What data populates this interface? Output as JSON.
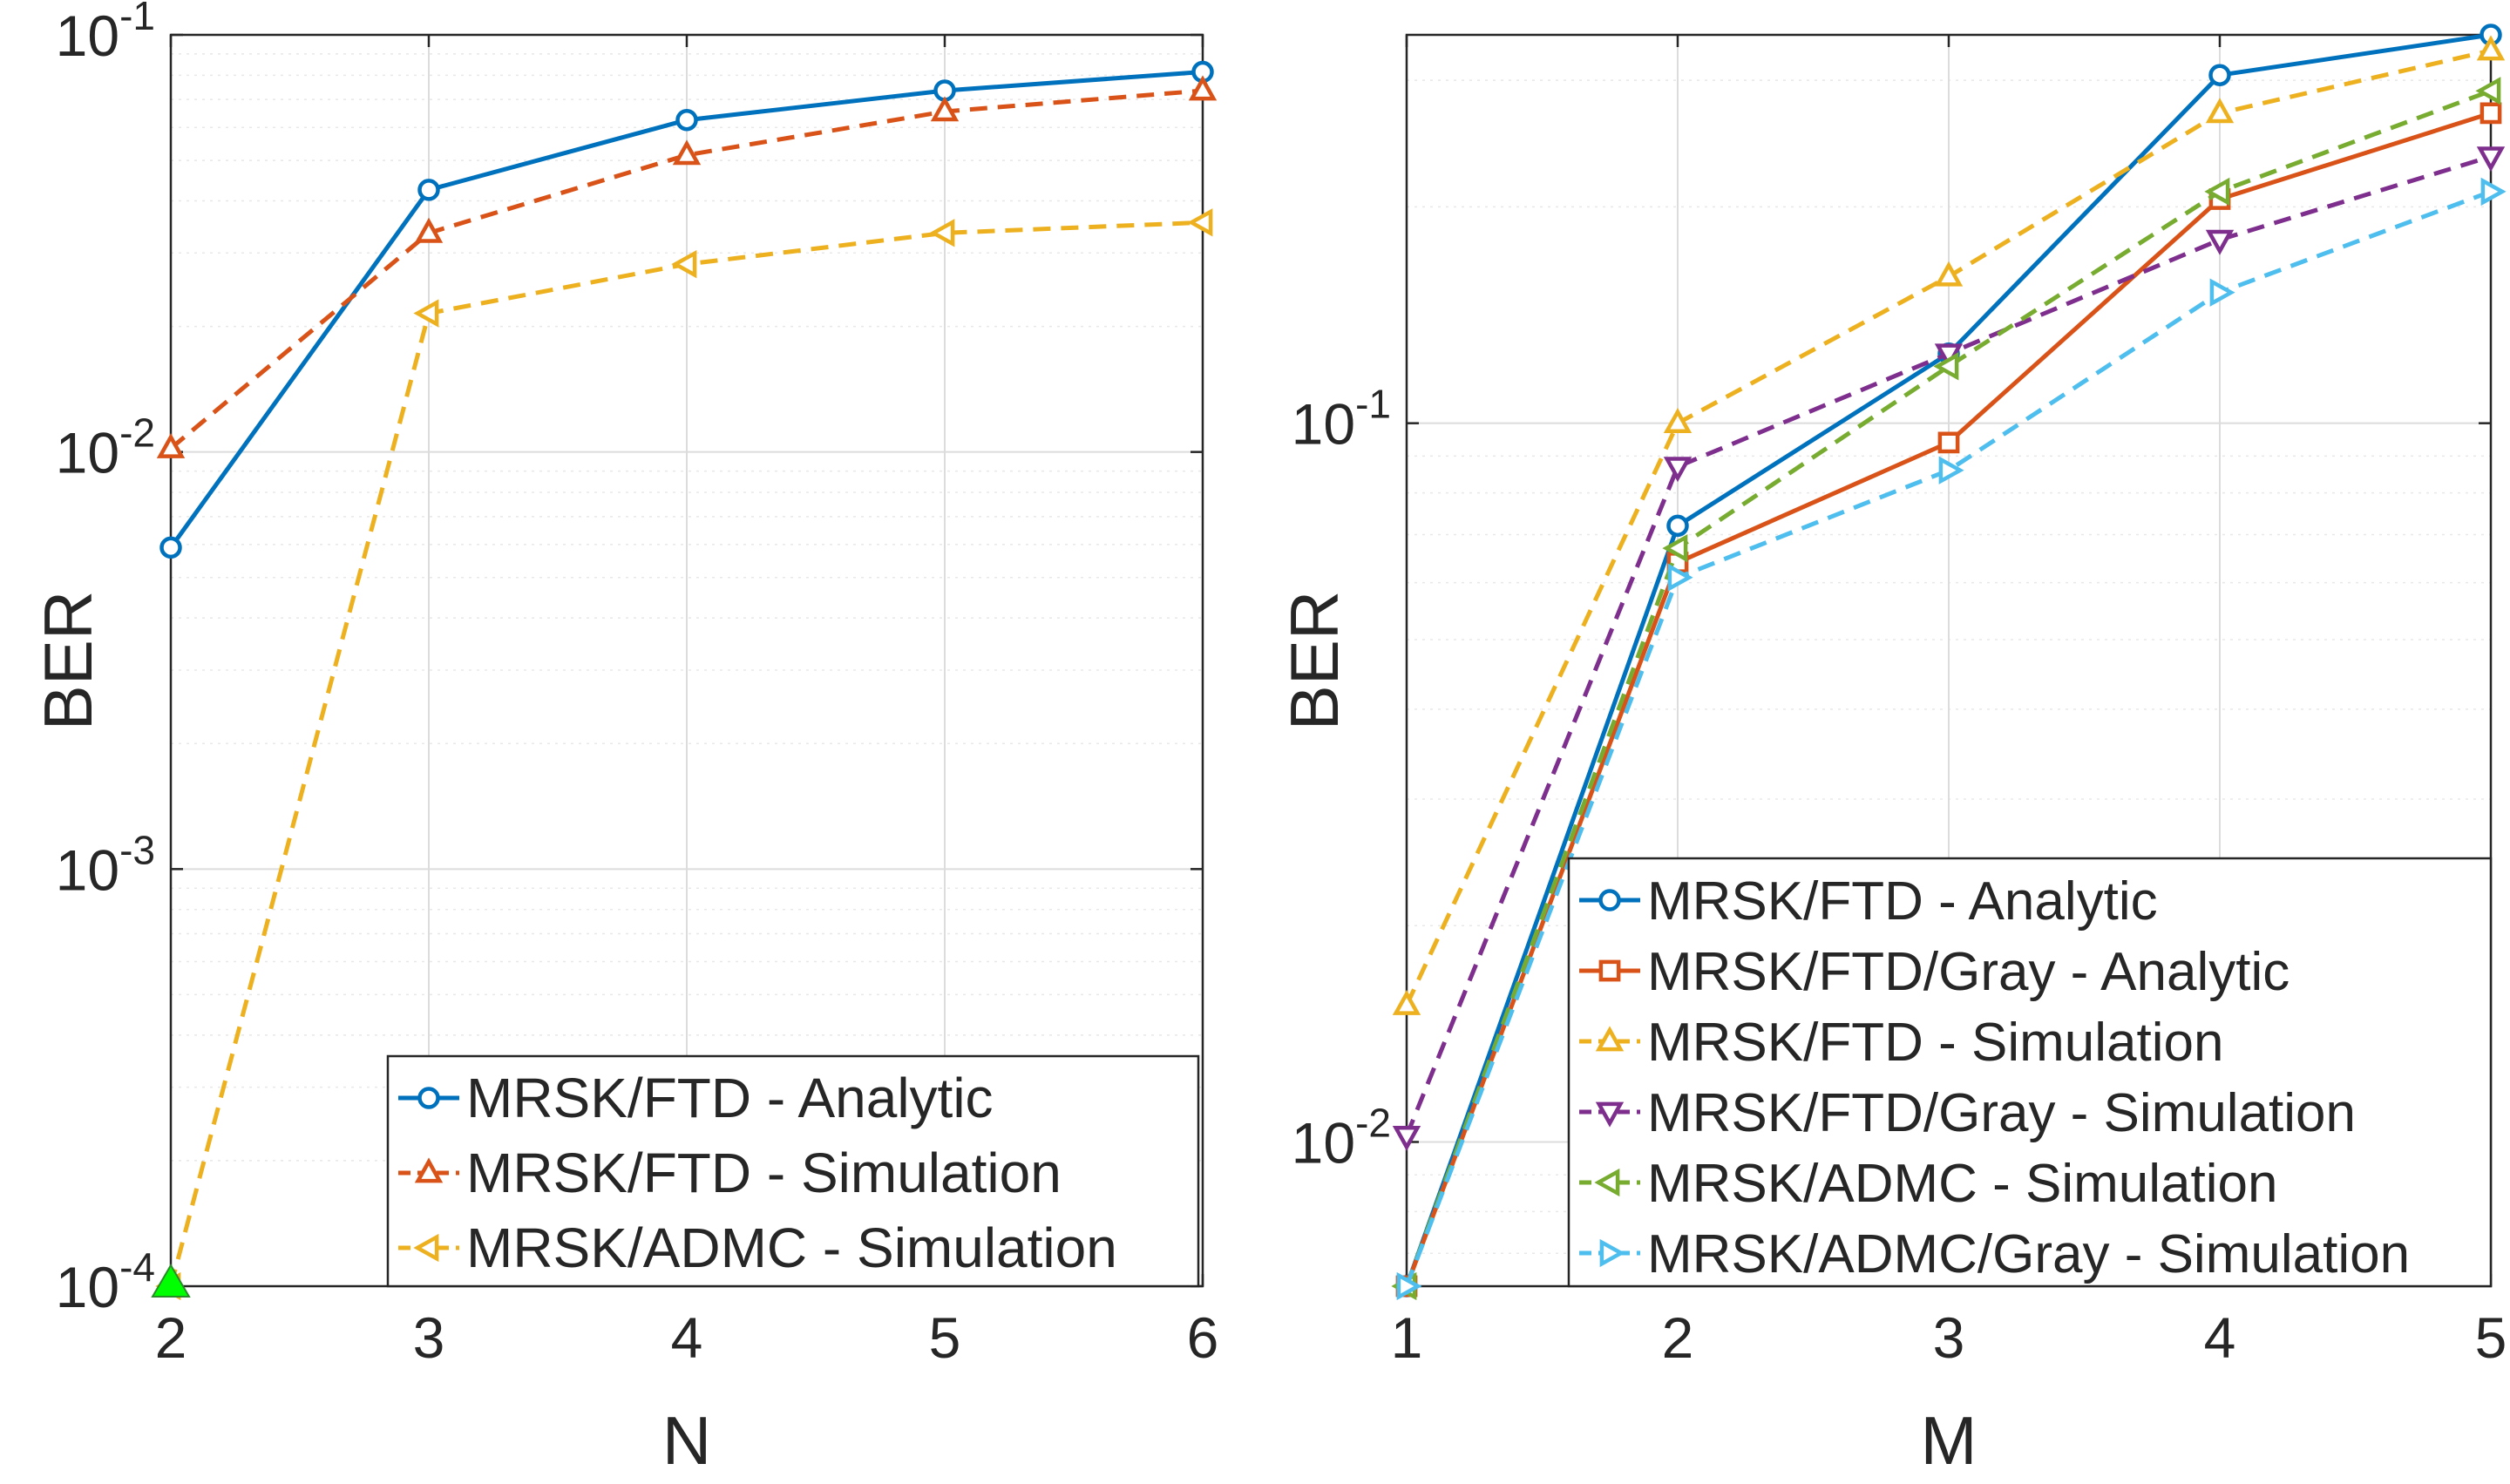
{
  "chart_data": [
    {
      "type": "line",
      "yscale": "log",
      "xlabel": "N",
      "ylabel": "BER",
      "xlim": [
        2,
        6
      ],
      "ylim": [
        0.0001,
        0.1
      ],
      "x_ticks": [
        "2",
        "3",
        "4",
        "5",
        "6"
      ],
      "y_ticks": [
        {
          "value": 0.0001,
          "base": "10",
          "exp": "-4"
        },
        {
          "value": 0.001,
          "base": "10",
          "exp": "-3"
        },
        {
          "value": 0.01,
          "base": "10",
          "exp": "-2"
        },
        {
          "value": 0.1,
          "base": "10",
          "exp": "-1"
        }
      ],
      "grid": true,
      "legend_position": "bottom-right",
      "series": [
        {
          "name": "MRSK/FTD - Analytic",
          "color": "#0072BD",
          "dash": "solid",
          "marker": "circle",
          "x": [
            2,
            3,
            4,
            5,
            6
          ],
          "values": [
            0.0059,
            0.0425,
            0.0625,
            0.0735,
            0.0815
          ]
        },
        {
          "name": "MRSK/FTD - Simulation",
          "color": "#D95319",
          "dash": "dashed",
          "marker": "triangle-up",
          "x": [
            2,
            3,
            4,
            5,
            6
          ],
          "values": [
            0.0102,
            0.0335,
            0.0515,
            0.0655,
            0.0735
          ]
        },
        {
          "name": "MRSK/ADMC - Simulation",
          "color": "#EDB120",
          "dash": "dashed",
          "marker": "triangle-left",
          "x": [
            2,
            3,
            4,
            5,
            6
          ],
          "values": [
            0.0001,
            0.0215,
            0.0282,
            0.0335,
            0.0355
          ]
        }
      ],
      "annotations": [
        {
          "type": "point",
          "x": 2,
          "y": 0.0001,
          "marker": "triangle-up",
          "color": "#00FF00"
        }
      ]
    },
    {
      "type": "line",
      "yscale": "log",
      "xlabel": "M",
      "ylabel": "BER",
      "xlim": [
        1,
        5
      ],
      "ylim": [
        0.0063,
        0.347
      ],
      "x_ticks": [
        "1",
        "2",
        "3",
        "4",
        "5"
      ],
      "y_ticks": [
        {
          "value": 0.01,
          "base": "10",
          "exp": "-2"
        },
        {
          "value": 0.1,
          "base": "10",
          "exp": "-1"
        }
      ],
      "grid": true,
      "legend_position": "bottom-right",
      "series": [
        {
          "name": "MRSK/FTD - Analytic",
          "color": "#0072BD",
          "dash": "solid",
          "marker": "circle",
          "x": [
            1,
            2,
            3,
            4,
            5
          ],
          "values": [
            0.0063,
            0.072,
            0.125,
            0.305,
            0.347
          ]
        },
        {
          "name": "MRSK/FTD/Gray - Analytic",
          "color": "#D95319",
          "dash": "solid",
          "marker": "square",
          "x": [
            1,
            2,
            3,
            4,
            5
          ],
          "values": [
            0.0063,
            0.064,
            0.094,
            0.205,
            0.27
          ]
        },
        {
          "name": "MRSK/FTD - Simulation",
          "color": "#EDB120",
          "dash": "dashed",
          "marker": "triangle-up",
          "x": [
            1,
            2,
            3,
            4,
            5
          ],
          "values": [
            0.0155,
            0.1,
            0.16,
            0.27,
            0.33
          ]
        },
        {
          "name": "MRSK/FTD/Gray - Simulation",
          "color": "#7E2F8E",
          "dash": "dashed",
          "marker": "triangle-down",
          "x": [
            1,
            2,
            3,
            4,
            5
          ],
          "values": [
            0.0102,
            0.087,
            0.125,
            0.18,
            0.235
          ]
        },
        {
          "name": "MRSK/ADMC - Simulation",
          "color": "#77AC30",
          "dash": "dashed",
          "marker": "triangle-left",
          "x": [
            1,
            2,
            3,
            4,
            5
          ],
          "values": [
            0.0063,
            0.067,
            0.12,
            0.21,
            0.29
          ]
        },
        {
          "name": "MRSK/ADMC/Gray - Simulation",
          "color": "#4DBEEE",
          "dash": "dashed",
          "marker": "triangle-right",
          "x": [
            1,
            2,
            3,
            4,
            5
          ],
          "values": [
            0.0063,
            0.061,
            0.086,
            0.152,
            0.21
          ]
        }
      ]
    }
  ]
}
